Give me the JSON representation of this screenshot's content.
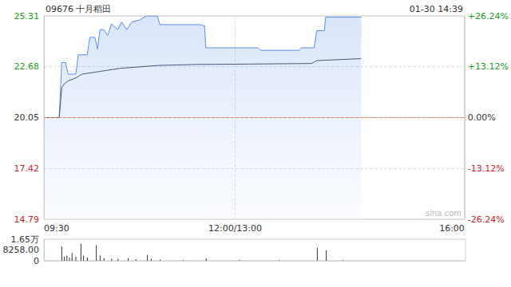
{
  "chart_data": [
    {
      "type": "line",
      "title": "09676 十月稻田",
      "subtitle": "01-30 14:39",
      "annotations": [
        "sina.com"
      ],
      "previous_close": 20.05,
      "grid": true,
      "xlim": [
        0,
        330
      ],
      "xticks": [
        {
          "value": 0,
          "label": "09:30"
        },
        {
          "value": 150,
          "label": "12:00/13:00"
        },
        {
          "value": 330,
          "label": "16:00"
        }
      ],
      "ylim": [
        14.79,
        25.31
      ],
      "yticks": [
        14.79,
        17.42,
        20.05,
        22.68,
        25.31
      ],
      "y2lim": [
        -26.24,
        26.24
      ],
      "y2ticks": [
        {
          "value": -26.24,
          "label": "-26.24%"
        },
        {
          "value": -13.12,
          "label": "-13.12%"
        },
        {
          "value": 0,
          "label": "0.00%"
        },
        {
          "value": 13.12,
          "label": "+13.12%"
        },
        {
          "value": 26.24,
          "label": "+26.24%"
        }
      ],
      "series": [
        {
          "type": "area",
          "color": "#5b8def",
          "x": [
            0,
            12,
            14,
            17,
            19,
            25,
            27,
            34,
            36,
            40,
            42,
            44,
            47,
            50,
            53,
            58,
            61,
            65,
            69,
            75,
            80,
            89,
            91,
            122,
            126,
            127,
            168,
            170,
            200,
            202,
            212,
            214,
            220,
            221,
            249
          ],
          "values": [
            20.05,
            20.05,
            22.9,
            22.9,
            22.3,
            22.3,
            23.3,
            23.3,
            24.2,
            24.2,
            23.6,
            24.6,
            24.6,
            24.3,
            24.9,
            24.6,
            25.0,
            24.6,
            25.0,
            25.1,
            25.31,
            25.31,
            24.86,
            24.86,
            24.8,
            23.66,
            23.66,
            23.53,
            23.53,
            23.66,
            23.66,
            24.55,
            24.55,
            25.25,
            25.25
          ]
        },
        {
          "type": "line",
          "color": "#4a5878",
          "x": [
            0,
            12,
            14,
            16,
            19,
            25,
            30,
            40,
            50,
            60,
            90,
            120,
            160,
            210,
            214,
            249
          ],
          "values": [
            20.05,
            20.05,
            21.6,
            21.8,
            21.95,
            22.1,
            22.3,
            22.4,
            22.5,
            22.6,
            22.75,
            22.8,
            22.82,
            22.85,
            23.0,
            23.1
          ]
        }
      ]
    },
    {
      "type": "bar",
      "color": "#333333",
      "tick_labels": "y",
      "xlim": [
        0,
        330
      ],
      "ylim": [
        0,
        16516
      ],
      "yticks": [
        0,
        {
          "value": 8258,
          "label": "8258.00"
        },
        {
          "value": 16516,
          "label": "1.65万"
        }
      ],
      "x": [
        14,
        16,
        18,
        20,
        22,
        25,
        29,
        31,
        34,
        41,
        44,
        47,
        53,
        58,
        66,
        72,
        81,
        84,
        91,
        109,
        127,
        153,
        184,
        214,
        221,
        234
      ],
      "values": [
        11000,
        3000,
        4000,
        2500,
        6000,
        3000,
        13000,
        4000,
        2500,
        12000,
        4000,
        2000,
        1500,
        1500,
        2000,
        1000,
        4500,
        1500,
        800,
        500,
        1800,
        400,
        400,
        10000,
        8000,
        500
      ]
    }
  ]
}
